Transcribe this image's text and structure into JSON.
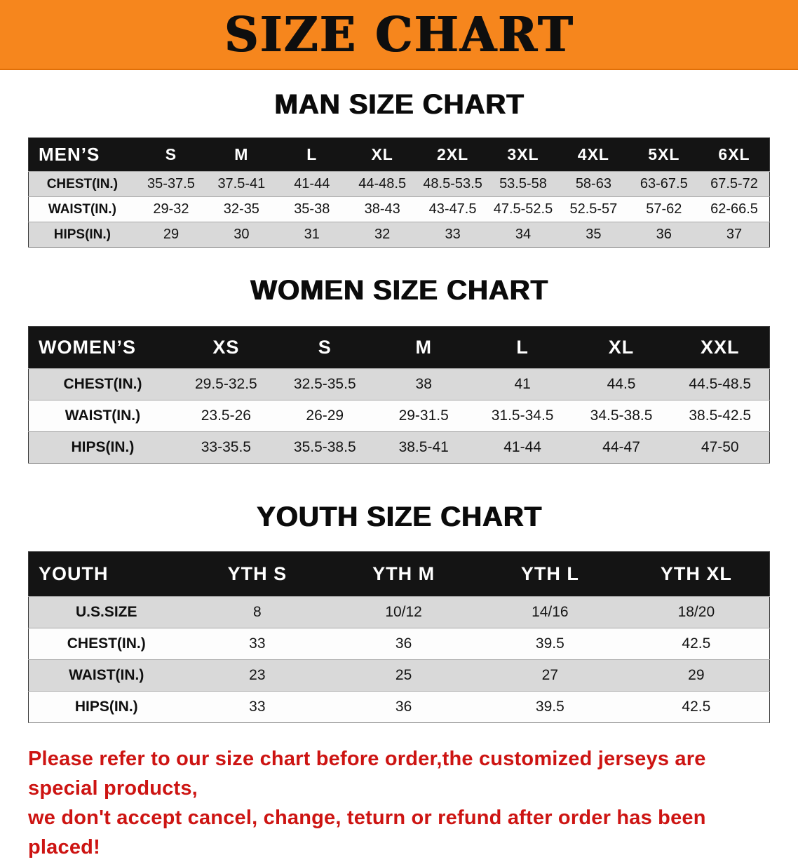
{
  "banner": {
    "title": "SIZE CHART"
  },
  "colors": {
    "banner_bg": "#f6861d",
    "header_bg": "#141414",
    "row_shade": "#d9d9d9",
    "footer_red": "#cd1412"
  },
  "sections": [
    {
      "heading": "MAN SIZE CHART",
      "table": {
        "header": [
          "MEN’S",
          "S",
          "M",
          "L",
          "XL",
          "2XL",
          "3XL",
          "4XL",
          "5XL",
          "6XL"
        ],
        "rows": [
          {
            "label": "CHEST(IN.)",
            "values": [
              "35-37.5",
              "37.5-41",
              "41-44",
              "44-48.5",
              "48.5-53.5",
              "53.5-58",
              "58-63",
              "63-67.5",
              "67.5-72"
            ]
          },
          {
            "label": "WAIST(IN.)",
            "values": [
              "29-32",
              "32-35",
              "35-38",
              "38-43",
              "43-47.5",
              "47.5-52.5",
              "52.5-57",
              "57-62",
              "62-66.5"
            ]
          },
          {
            "label": "HIPS(IN.)",
            "values": [
              "29",
              "30",
              "31",
              "32",
              "33",
              "34",
              "35",
              "36",
              "37"
            ]
          }
        ]
      }
    },
    {
      "heading": "WOMEN SIZE CHART",
      "table": {
        "header": [
          "WOMEN’S",
          "XS",
          "S",
          "M",
          "L",
          "XL",
          "XXL"
        ],
        "rows": [
          {
            "label": "CHEST(IN.)",
            "values": [
              "29.5-32.5",
              "32.5-35.5",
              "38",
              "41",
              "44.5",
              "44.5-48.5"
            ]
          },
          {
            "label": "WAIST(IN.)",
            "values": [
              "23.5-26",
              "26-29",
              "29-31.5",
              "31.5-34.5",
              "34.5-38.5",
              "38.5-42.5"
            ]
          },
          {
            "label": "HIPS(IN.)",
            "values": [
              "33-35.5",
              "35.5-38.5",
              "38.5-41",
              "41-44",
              "44-47",
              "47-50"
            ]
          }
        ]
      }
    },
    {
      "heading": "YOUTH SIZE CHART",
      "table": {
        "header": [
          "YOUTH",
          "YTH S",
          "YTH M",
          "YTH L",
          "YTH XL"
        ],
        "rows": [
          {
            "label": "U.S.SIZE",
            "values": [
              "8",
              "10/12",
              "14/16",
              "18/20"
            ]
          },
          {
            "label": "CHEST(IN.)",
            "values": [
              "33",
              "36",
              "39.5",
              "42.5"
            ]
          },
          {
            "label": "WAIST(IN.)",
            "values": [
              "23",
              "25",
              "27",
              "29"
            ]
          },
          {
            "label": "HIPS(IN.)",
            "values": [
              "33",
              "36",
              "39.5",
              "42.5"
            ]
          }
        ]
      }
    }
  ],
  "footer": {
    "line1": "Please refer to our size chart before order,the customized jerseys are special products,",
    "line2": "we don't accept cancel, change, teturn or refund after order has been placed!"
  }
}
